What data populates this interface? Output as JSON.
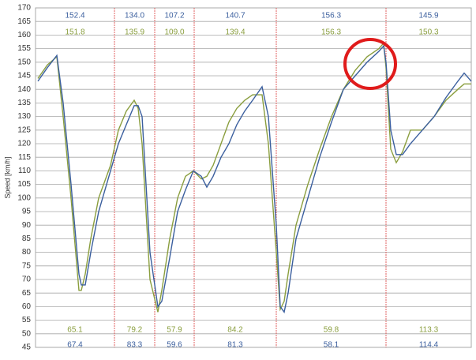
{
  "chart_data": {
    "type": "line",
    "ylabel": "Speed [km/h]",
    "xlim": [
      0,
      552
    ],
    "ylim": [
      45,
      170
    ],
    "yticks": [
      45,
      50,
      55,
      60,
      65,
      70,
      75,
      80,
      85,
      90,
      95,
      100,
      105,
      110,
      115,
      120,
      125,
      130,
      135,
      140,
      145,
      150,
      155,
      160,
      165,
      170
    ],
    "grid": true,
    "x": [
      3,
      15,
      27,
      35,
      45,
      55,
      58,
      63,
      70,
      80,
      95,
      105,
      115,
      125,
      130,
      135,
      145,
      155,
      160,
      170,
      180,
      190,
      200,
      210,
      217,
      225,
      235,
      245,
      255,
      265,
      275,
      287,
      295,
      305,
      310,
      315,
      320,
      330,
      345,
      360,
      375,
      390,
      405,
      420,
      435,
      441,
      444,
      450,
      457,
      465,
      475,
      490,
      505,
      520,
      535,
      543,
      552
    ],
    "series": [
      {
        "color": "#3b5f9e",
        "values": [
          143,
          148,
          152.5,
          135,
          105,
          72,
          68,
          68,
          80,
          95,
          110,
          120,
          127,
          134,
          134,
          130,
          80,
          60,
          62,
          78,
          95,
          103,
          110,
          108,
          104,
          108,
          115,
          120,
          127,
          132,
          136,
          141,
          130,
          90,
          60,
          58,
          65,
          85,
          100,
          115,
          128,
          140,
          145,
          150,
          154,
          156,
          150,
          125,
          116,
          116,
          120,
          125,
          130,
          137,
          143,
          146,
          143
        ]
      },
      {
        "color": "#8a9e3e",
        "values": [
          144,
          149,
          152,
          130,
          100,
          66,
          66,
          72,
          85,
          100,
          112,
          125,
          132,
          136,
          133,
          120,
          70,
          58,
          66,
          85,
          100,
          108,
          110,
          107,
          108,
          112,
          120,
          128,
          133,
          136,
          138,
          138,
          120,
          80,
          59,
          62,
          72,
          90,
          105,
          118,
          130,
          140,
          147,
          152,
          155,
          157,
          148,
          118,
          113,
          117,
          125,
          125,
          130,
          136,
          140,
          142,
          142
        ]
      }
    ],
    "sector_bounds": [
      100,
      151,
      201,
      305,
      444
    ],
    "sector_labels": [
      {
        "top": [
          "152.4",
          "151.8"
        ],
        "bottom": [
          "65.1",
          "67.4"
        ]
      },
      {
        "top": [
          "134.0",
          "135.9"
        ],
        "bottom": [
          "79.2",
          "83.3"
        ]
      },
      {
        "top": [
          "107.2",
          "109.0"
        ],
        "bottom": [
          "57.9",
          "59.6"
        ]
      },
      {
        "top": [
          "140.7",
          "139.4"
        ],
        "bottom": [
          "84.2",
          "81.3"
        ]
      },
      {
        "top": [
          "156.3",
          "156.3"
        ],
        "bottom": [
          "59.8",
          "58.1"
        ]
      },
      {
        "top": [
          "145.9",
          "150.3"
        ],
        "bottom": [
          "113.3",
          "114.4"
        ]
      }
    ]
  }
}
